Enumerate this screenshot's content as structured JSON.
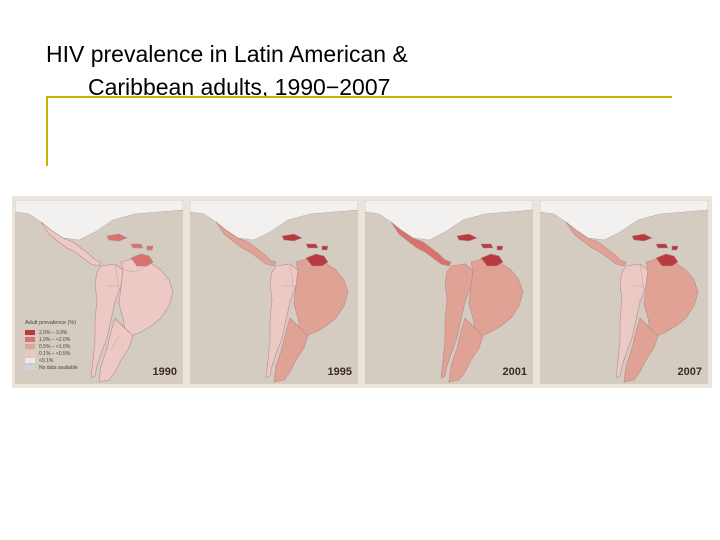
{
  "title": {
    "line1": "HIV prevalence in Latin American &",
    "line2": "Caribbean adults, 1990−2007"
  },
  "colors": {
    "accent_rule": "#c8b400",
    "background": "#d4ccc1",
    "north_america": "#f3f1ef",
    "no_data": "#c9d4e2"
  },
  "legend": {
    "title": "Adult prevalence (%)",
    "items": [
      {
        "label": "2.0% – 3.9%",
        "color": "#b83a3f"
      },
      {
        "label": "1.0% – <2.0%",
        "color": "#d6736f"
      },
      {
        "label": "0.5% – <1.0%",
        "color": "#e0a295"
      },
      {
        "label": "0.1% – <0.5%",
        "color": "#ecc9c5"
      },
      {
        "label": "<0.1%",
        "color": "#f5e6e2"
      },
      {
        "label": "No data available",
        "color": "#c9d4e2"
      }
    ]
  },
  "maps": [
    {
      "year": "1990",
      "brazil": "#ecc9c5",
      "andes": "#ecc9c5",
      "south_cone": "#ecc9c5",
      "guianas": "#d6736f",
      "central_america": "#ecc9c5",
      "caribbean": "#d6736f"
    },
    {
      "year": "1995",
      "brazil": "#e0a295",
      "andes": "#ecc9c5",
      "south_cone": "#e0a295",
      "guianas": "#b83a3f",
      "central_america": "#e0a295",
      "caribbean": "#b83a3f"
    },
    {
      "year": "2001",
      "brazil": "#e0a295",
      "andes": "#e0a295",
      "south_cone": "#e0a295",
      "guianas": "#b83a3f",
      "central_america": "#d6736f",
      "caribbean": "#b83a3f"
    },
    {
      "year": "2007",
      "brazil": "#e0a295",
      "andes": "#ecc9c5",
      "south_cone": "#e0a295",
      "guianas": "#b83a3f",
      "central_america": "#e0a295",
      "caribbean": "#b83a3f"
    }
  ]
}
